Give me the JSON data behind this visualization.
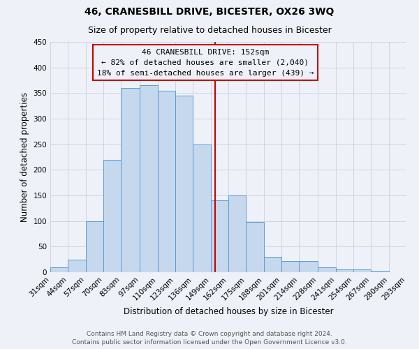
{
  "title": "46, CRANESBILL DRIVE, BICESTER, OX26 3WQ",
  "subtitle": "Size of property relative to detached houses in Bicester",
  "xlabel": "Distribution of detached houses by size in Bicester",
  "ylabel": "Number of detached properties",
  "bin_labels": [
    "31sqm",
    "44sqm",
    "57sqm",
    "70sqm",
    "83sqm",
    "97sqm",
    "110sqm",
    "123sqm",
    "136sqm",
    "149sqm",
    "162sqm",
    "175sqm",
    "188sqm",
    "201sqm",
    "214sqm",
    "228sqm",
    "241sqm",
    "254sqm",
    "267sqm",
    "280sqm",
    "293sqm"
  ],
  "bin_edges": [
    31,
    44,
    57,
    70,
    83,
    97,
    110,
    123,
    136,
    149,
    162,
    175,
    188,
    201,
    214,
    228,
    241,
    254,
    267,
    280,
    293
  ],
  "bar_heights": [
    10,
    25,
    100,
    220,
    360,
    365,
    355,
    345,
    250,
    140,
    150,
    98,
    30,
    22,
    22,
    10,
    5,
    5,
    3,
    0,
    2
  ],
  "bar_color": "#c5d8ed",
  "bar_edge_color": "#5b9bd5",
  "ylim": [
    0,
    450
  ],
  "yticks": [
    0,
    50,
    100,
    150,
    200,
    250,
    300,
    350,
    400,
    450
  ],
  "property_sqm": 152,
  "vline_color": "#cc0000",
  "annotation_line1": "46 CRANESBILL DRIVE: 152sqm",
  "annotation_line2": "← 82% of detached houses are smaller (2,040)",
  "annotation_line3": "18% of semi-detached houses are larger (439) →",
  "annotation_box_edge_color": "#cc0000",
  "footer_line1": "Contains HM Land Registry data © Crown copyright and database right 2024.",
  "footer_line2": "Contains public sector information licensed under the Open Government Licence v3.0.",
  "background_color": "#eef2f8",
  "title_fontsize": 10,
  "subtitle_fontsize": 9,
  "axis_label_fontsize": 8.5,
  "tick_fontsize": 7.5,
  "annotation_fontsize": 8,
  "footer_fontsize": 6.5
}
